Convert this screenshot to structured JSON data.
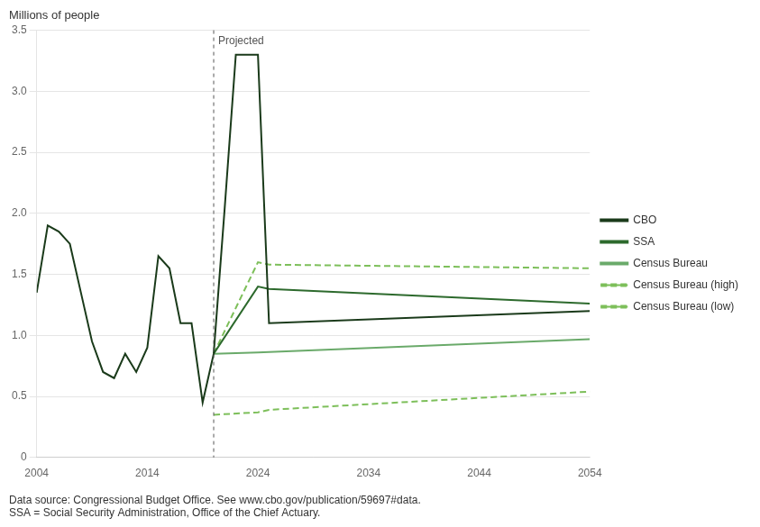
{
  "chart_data": {
    "type": "line",
    "title": "Millions of people",
    "xlim": [
      2004,
      2054
    ],
    "ylim": [
      0,
      3.5
    ],
    "xticks": [
      2004,
      2014,
      2024,
      2034,
      2044,
      2054
    ],
    "yticks": [
      0,
      0.5,
      {
        "value": 1.0,
        "label": "1.0"
      },
      1.5,
      {
        "value": 2.0,
        "label": "2.0"
      },
      2.5,
      {
        "value": 3.0,
        "label": "3.0"
      },
      3.5
    ],
    "grid": "y",
    "legend": "right",
    "series": [
      {
        "name": "CBO",
        "color": "#1a3a1a",
        "line_style": "solid",
        "x": [
          2004,
          2005,
          2006,
          2007,
          2008,
          2009,
          2010,
          2011,
          2012,
          2013,
          2014,
          2015,
          2016,
          2017,
          2018,
          2019,
          2020,
          2020,
          2021,
          2022,
          2023,
          2024,
          2025,
          2054
        ],
        "values": [
          1.35,
          1.9,
          1.85,
          1.75,
          1.35,
          0.95,
          0.7,
          0.65,
          0.85,
          0.7,
          0.9,
          1.65,
          1.55,
          1.1,
          1.1,
          0.45,
          0.85,
          0.85,
          2.05,
          3.3,
          3.3,
          3.3,
          1.1,
          1.2
        ]
      },
      {
        "name": "SSA",
        "color": "#2d6a2d",
        "line_style": "solid",
        "x": [
          2020,
          2024,
          2025,
          2054
        ],
        "values": [
          0.85,
          1.4,
          1.38,
          1.26
        ]
      },
      {
        "name": "Census Bureau",
        "color": "#6aaa6a",
        "line_style": "solid",
        "x": [
          2020,
          2024,
          2054
        ],
        "values": [
          0.85,
          0.86,
          0.97
        ]
      },
      {
        "name": "Census Bureau (high)",
        "color": "#7dbf5a",
        "line_style": "dashed",
        "x": [
          2020,
          2024,
          2025,
          2054
        ],
        "values": [
          0.85,
          1.6,
          1.58,
          1.55
        ]
      },
      {
        "name": "Census Bureau (low)",
        "color": "#7dbf5a",
        "line_style": "dashed",
        "x": [
          2020,
          2024,
          2025,
          2054
        ],
        "values": [
          0.35,
          0.37,
          0.39,
          0.54
        ]
      }
    ],
    "annotations": [
      {
        "x": 2020,
        "text": "Projected"
      }
    ],
    "source": "Data source: Congressional Budget Office. See www.cbo.gov/publication/59697#data.",
    "footnote": "SSA = Social Security Administration, Office of the Chief Actuary."
  }
}
